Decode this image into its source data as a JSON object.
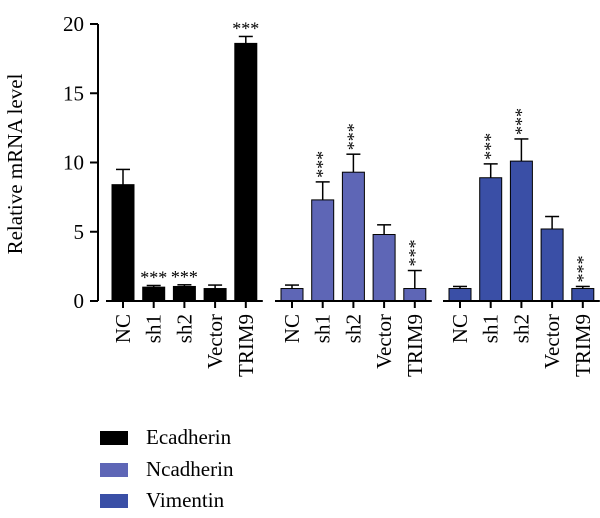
{
  "chart_data": {
    "type": "bar",
    "ylabel": "Relative mRNA level",
    "ylim": [
      0,
      20
    ],
    "yticks": [
      "0",
      "5",
      "10",
      "15",
      "20"
    ],
    "categories": [
      "NC",
      "sh1",
      "sh2",
      "Vector",
      "TRIM9"
    ],
    "significance_mark": "***",
    "legend_position": "bottom-left",
    "series": [
      {
        "name": "Ecadherin",
        "color": "#000000",
        "values": [
          8.4,
          1.0,
          1.05,
          0.9,
          18.6
        ],
        "errors": [
          1.1,
          0.12,
          0.12,
          0.25,
          0.5
        ],
        "significant": [
          false,
          true,
          true,
          false,
          true
        ]
      },
      {
        "name": "Ncadherin",
        "color": "#5e66b6",
        "values": [
          0.9,
          7.3,
          9.3,
          4.8,
          0.9
        ],
        "errors": [
          0.25,
          1.3,
          1.3,
          0.7,
          1.3
        ],
        "significant": [
          false,
          true,
          true,
          false,
          true
        ]
      },
      {
        "name": "Vimentin",
        "color": "#3a4fa6",
        "values": [
          0.9,
          8.9,
          10.1,
          5.2,
          0.9
        ],
        "errors": [
          0.15,
          1.0,
          1.6,
          0.9,
          0.15
        ],
        "significant": [
          false,
          true,
          true,
          false,
          true
        ]
      }
    ]
  }
}
